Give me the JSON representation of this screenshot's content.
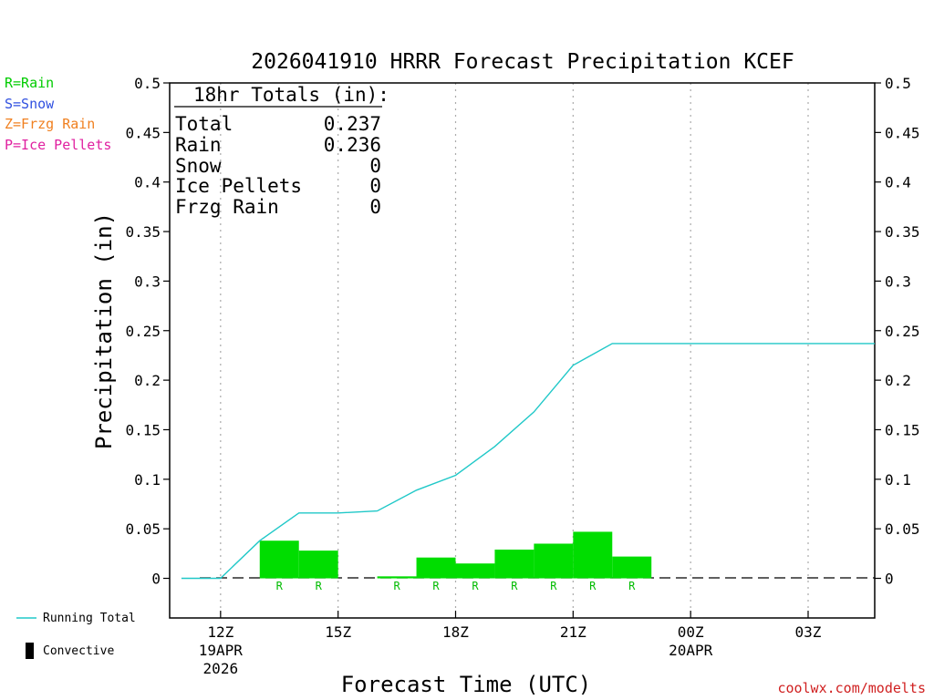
{
  "chart_data": {
    "type": "bar",
    "title": "2026041910 HRRR Forecast Precipitation KCEF",
    "xlabel": "Forecast Time (UTC)",
    "ylabel": "Precipitation (in)",
    "ylim": [
      -0.04,
      0.5
    ],
    "yticks": [
      0,
      0.05,
      0.1,
      0.15,
      0.2,
      0.25,
      0.3,
      0.35,
      0.4,
      0.45,
      0.5
    ],
    "ytick_labels": [
      "0",
      "0.05",
      "0.1",
      "0.15",
      "0.2",
      "0.25",
      "0.3",
      "0.35",
      "0.4",
      "0.45",
      "0.5"
    ],
    "xlim_hours": [
      10.7,
      28.7
    ],
    "xticks": [
      {
        "hour": 12,
        "label": "12Z",
        "sub1": "19APR",
        "sub2": "2026"
      },
      {
        "hour": 15,
        "label": "15Z",
        "sub1": "",
        "sub2": ""
      },
      {
        "hour": 18,
        "label": "18Z",
        "sub1": "",
        "sub2": ""
      },
      {
        "hour": 21,
        "label": "21Z",
        "sub1": "",
        "sub2": ""
      },
      {
        "hour": 24,
        "label": "00Z",
        "sub1": "20APR",
        "sub2": ""
      },
      {
        "hour": 27,
        "label": "03Z",
        "sub1": "",
        "sub2": ""
      }
    ],
    "bars": {
      "name": "Rain",
      "color": "#00dd00",
      "start_hours": [
        11,
        12,
        13,
        14,
        15,
        16,
        17,
        18,
        19,
        20,
        21,
        22,
        23,
        24,
        25,
        26,
        27,
        28
      ],
      "values": [
        0,
        0,
        0.038,
        0.028,
        0,
        0.002,
        0.021,
        0.015,
        0.029,
        0.035,
        0.047,
        0.022,
        0,
        0,
        0,
        0,
        0,
        0
      ],
      "type_codes": [
        "",
        "",
        "R",
        "R",
        "",
        "R",
        "R",
        "R",
        "R",
        "R",
        "R",
        "R",
        "",
        "",
        "",
        "",
        "",
        ""
      ]
    },
    "running_total": {
      "name": "Running Total",
      "color": "#20c8c8",
      "x_hours": [
        11,
        12,
        13,
        14,
        15,
        16,
        17,
        18,
        19,
        20,
        21,
        22,
        23,
        24,
        25,
        26,
        27,
        28,
        28.7
      ],
      "values": [
        0,
        0,
        0.038,
        0.066,
        0.066,
        0.068,
        0.089,
        0.104,
        0.133,
        0.168,
        0.215,
        0.237,
        0.237,
        0.237,
        0.237,
        0.237,
        0.237,
        0.237,
        0.237
      ]
    }
  },
  "precip_legend": [
    {
      "text": "R=Rain",
      "color": "#00cc00"
    },
    {
      "text": "S=Snow",
      "color": "#3050e0"
    },
    {
      "text": "Z=Frzg Rain",
      "color": "#f08020"
    },
    {
      "text": "P=Ice Pellets",
      "color": "#e020a0"
    }
  ],
  "totals": {
    "header": "18hr Totals (in):",
    "rows": [
      {
        "label": "Total",
        "value": "0.237"
      },
      {
        "label": "Rain",
        "value": "0.236"
      },
      {
        "label": "Snow",
        "value": "0"
      },
      {
        "label": "Ice Pellets",
        "value": "0"
      },
      {
        "label": "Frzg Rain",
        "value": "0"
      }
    ]
  },
  "bottom_legend": {
    "running_total_label": "Running Total",
    "convective_label": "Convective"
  },
  "footer": "coolwx.com/modelts"
}
